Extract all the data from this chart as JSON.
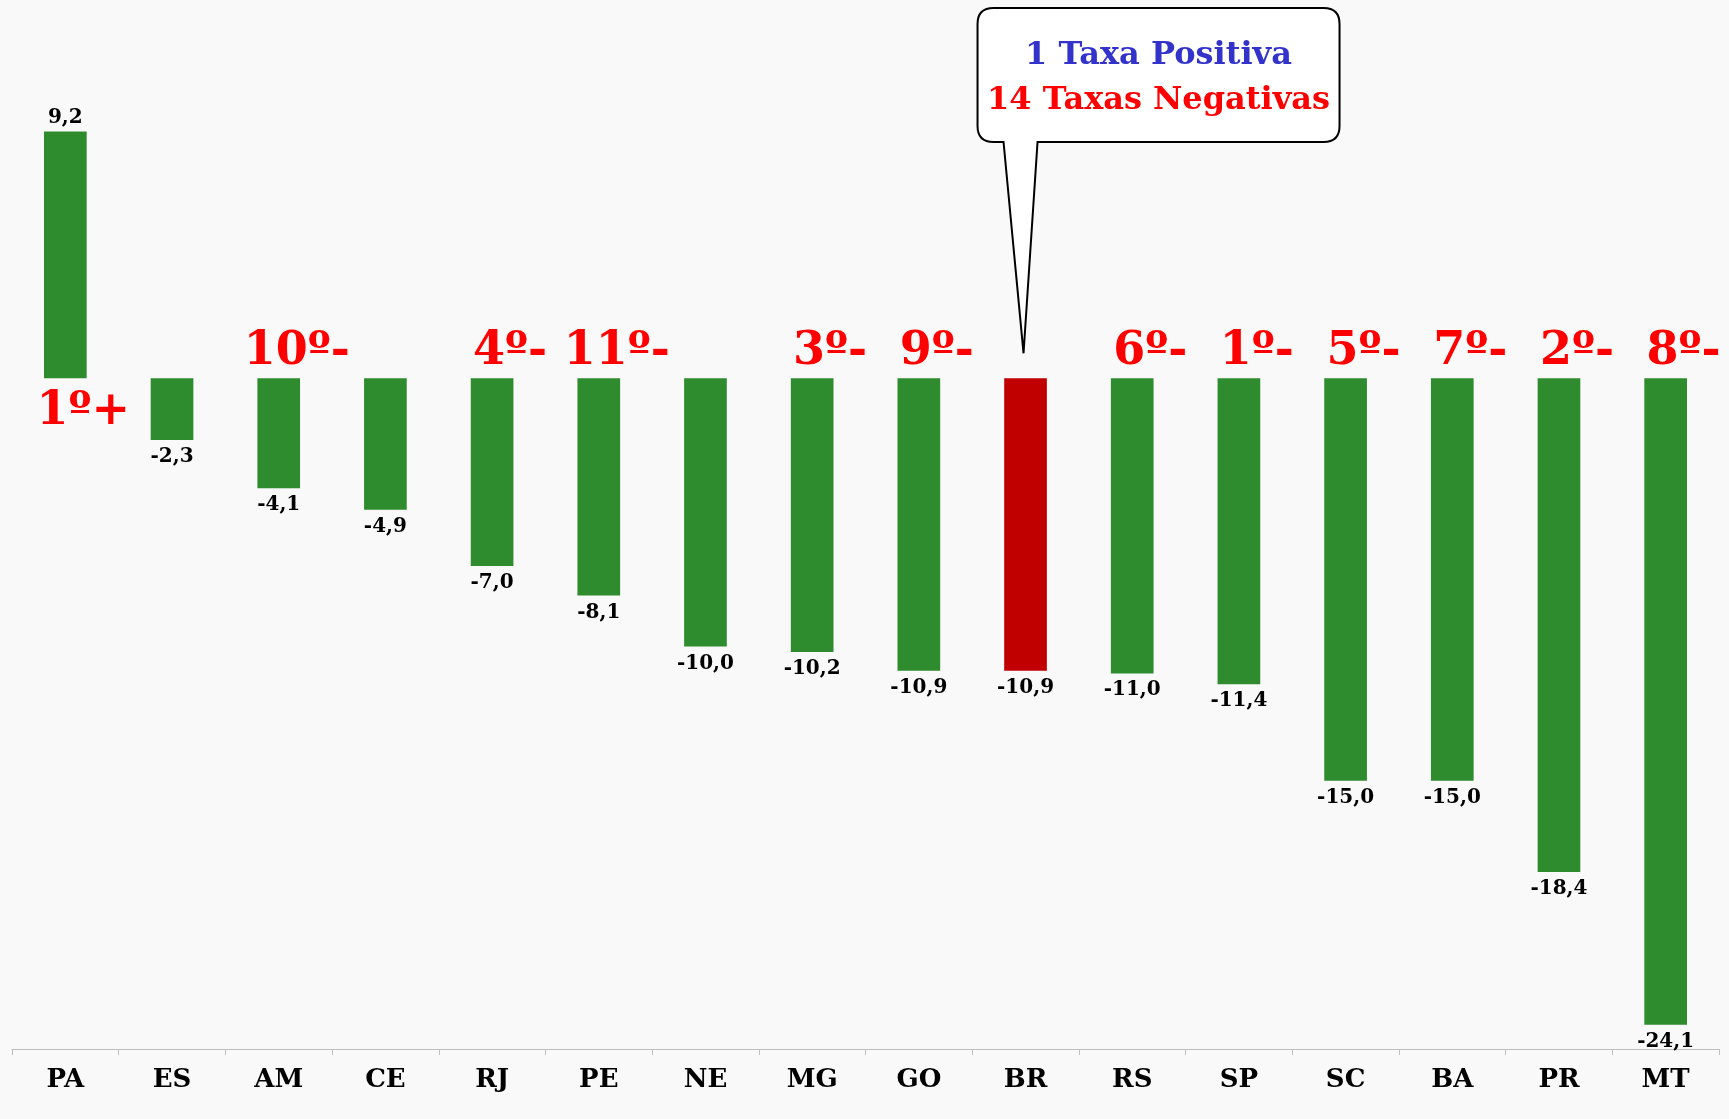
{
  "chart_data": {
    "type": "bar",
    "categories": [
      "PA",
      "ES",
      "AM",
      "CE",
      "RJ",
      "PE",
      "NE",
      "MG",
      "GO",
      "BR",
      "RS",
      "SP",
      "SC",
      "BA",
      "PR",
      "MT"
    ],
    "values": [
      9.2,
      -2.3,
      -4.1,
      -4.9,
      -7.0,
      -8.1,
      -10.0,
      -10.2,
      -10.9,
      -10.9,
      -11.0,
      -11.4,
      -15.0,
      -15.0,
      -18.4,
      -24.1
    ],
    "colors": [
      "#2e8b2e",
      "#2e8b2e",
      "#2e8b2e",
      "#2e8b2e",
      "#2e8b2e",
      "#2e8b2e",
      "#2e8b2e",
      "#2e8b2e",
      "#2e8b2e",
      "#c00000",
      "#2e8b2e",
      "#2e8b2e",
      "#2e8b2e",
      "#2e8b2e",
      "#2e8b2e",
      "#2e8b2e"
    ],
    "value_labels": [
      "9,2",
      "-2,3",
      "-4,1",
      "-4,9",
      "-7,0",
      "-8,1",
      "-10,0",
      "-10,2",
      "-10,9",
      "-10,9",
      "-11,0",
      "-11,4",
      "-15,0",
      "-15,0",
      "-18,4",
      "-24,1"
    ],
    "annotations": [
      {
        "text": "1º+",
        "x": "PA",
        "y": 0
      },
      {
        "text": "10º-",
        "x": "AM",
        "y": 0
      },
      {
        "text": "4º-",
        "x": "RJ",
        "y": 0
      },
      {
        "text": "11º-",
        "x": "PE",
        "y": 0
      },
      {
        "text": "3º-",
        "x": "MG",
        "y": 0
      },
      {
        "text": "9º-",
        "x": "GO",
        "y": 0
      },
      {
        "text": "6º-",
        "x": "RS",
        "y": 0
      },
      {
        "text": "1º-",
        "x": "SP",
        "y": 0
      },
      {
        "text": "5º-",
        "x": "SC",
        "y": 0
      },
      {
        "text": "7º-",
        "x": "BA",
        "y": 0
      },
      {
        "text": "2º-",
        "x": "PR",
        "y": 0
      },
      {
        "text": "8º-",
        "x": "MT",
        "y": 0
      },
      "1 Taxa Positiva",
      "14 Taxas Negativas"
    ]
  }
}
